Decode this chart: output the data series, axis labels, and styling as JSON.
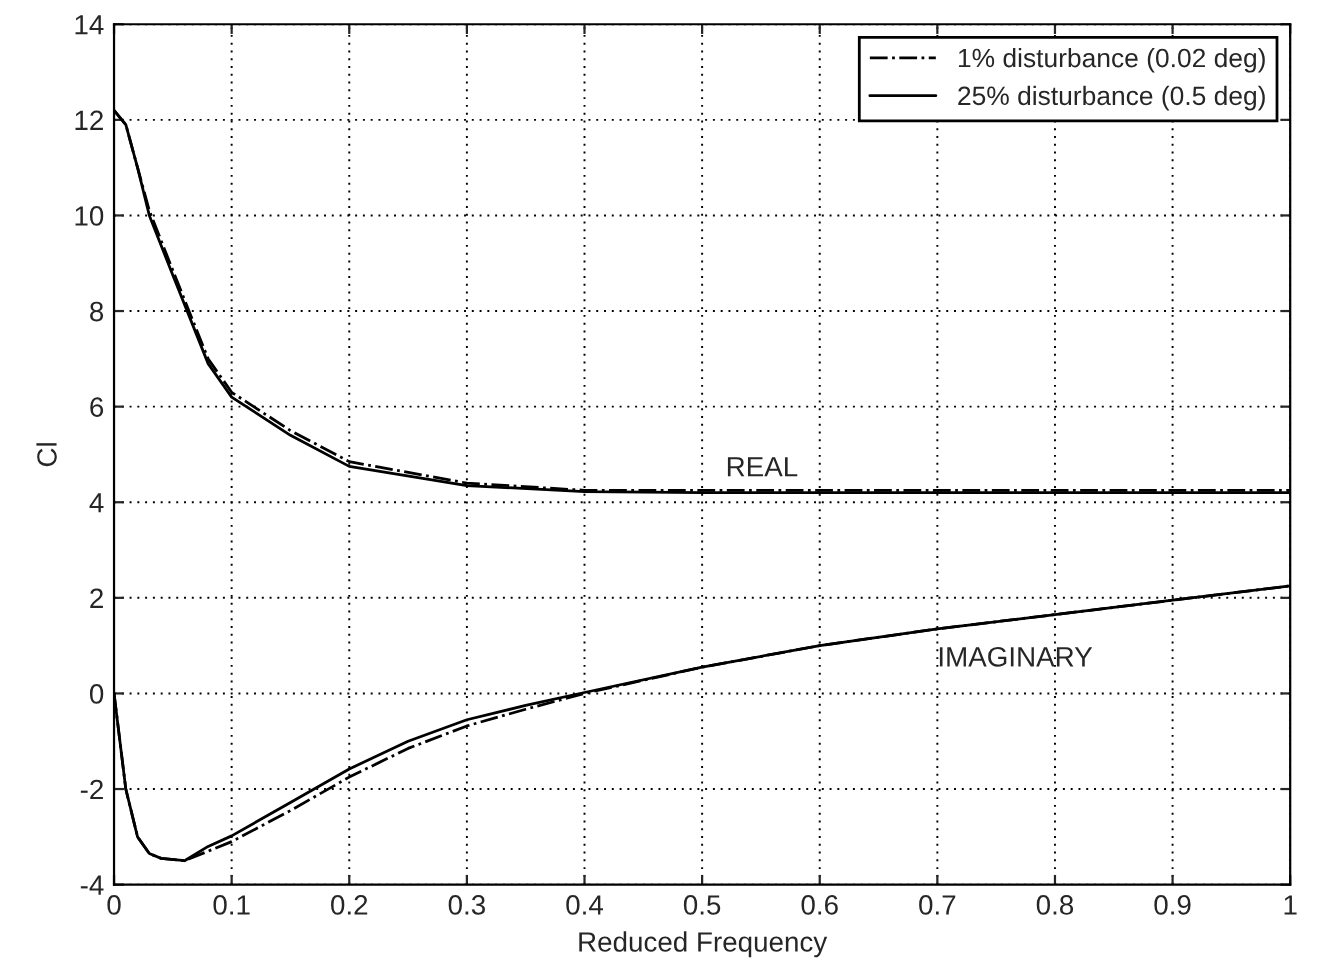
{
  "chart_data": {
    "type": "line",
    "xlabel": "Reduced Frequency",
    "ylabel": "Cl",
    "xlim": [
      0,
      1
    ],
    "ylim": [
      -4,
      14
    ],
    "xticks": [
      0,
      0.1,
      0.2,
      0.3,
      0.4,
      0.5,
      0.6,
      0.7,
      0.8,
      0.9,
      1
    ],
    "yticks": [
      -4,
      -2,
      0,
      2,
      4,
      6,
      8,
      10,
      12,
      14
    ],
    "grid": true,
    "legend": "top right",
    "marker": "none",
    "annotations": [
      "REAL",
      "IMAGINARY"
    ],
    "series": [
      {
        "name": "1% disturbance (0.02 deg)",
        "color": "#000000",
        "line_style": "dashdot",
        "x": [
          0,
          0.01,
          0.02,
          0.03,
          0.05,
          0.08,
          0.1,
          0.15,
          0.2,
          0.3,
          0.4,
          0.5,
          0.7,
          1
        ],
        "values": [
          12.2,
          11.9,
          11.0,
          10.1,
          8.85,
          7.0,
          6.3,
          5.5,
          4.85,
          4.4,
          4.25,
          4.25,
          4.25,
          4.25
        ]
      },
      {
        "name": "25% disturbance (0.5 deg)",
        "color": "#000000",
        "line_style": "solid",
        "x": [
          0,
          0.01,
          0.02,
          0.03,
          0.05,
          0.08,
          0.1,
          0.15,
          0.2,
          0.3,
          0.4,
          0.5,
          0.7,
          1
        ],
        "values": [
          12.2,
          11.9,
          11.0,
          10.0,
          8.75,
          6.9,
          6.2,
          5.4,
          4.75,
          4.35,
          4.22,
          4.2,
          4.2,
          4.2
        ]
      },
      {
        "color": "#000000",
        "line_style": "dashdot",
        "x": [
          0,
          0.01,
          0.02,
          0.03,
          0.04,
          0.06,
          0.08,
          0.1,
          0.15,
          0.2,
          0.25,
          0.3,
          0.35,
          0.4,
          0.5,
          0.6,
          0.7,
          0.8,
          0.9,
          1
        ],
        "values": [
          0,
          -2.0,
          -3.0,
          -3.35,
          -3.45,
          -3.5,
          -3.3,
          -3.1,
          -2.45,
          -1.75,
          -1.15,
          -0.68,
          -0.33,
          0.0,
          0.55,
          1.0,
          1.35,
          1.65,
          1.95,
          2.25
        ]
      },
      {
        "color": "#000000",
        "line_style": "solid",
        "x": [
          0,
          0.01,
          0.02,
          0.03,
          0.04,
          0.06,
          0.08,
          0.1,
          0.15,
          0.2,
          0.25,
          0.3,
          0.35,
          0.4,
          0.5,
          0.6,
          0.7,
          0.8,
          0.9,
          1
        ],
        "values": [
          0,
          -2.0,
          -3.0,
          -3.35,
          -3.45,
          -3.5,
          -3.2,
          -2.98,
          -2.28,
          -1.58,
          -1.0,
          -0.55,
          -0.25,
          0.02,
          0.55,
          1.0,
          1.35,
          1.65,
          1.95,
          2.25
        ]
      }
    ]
  }
}
